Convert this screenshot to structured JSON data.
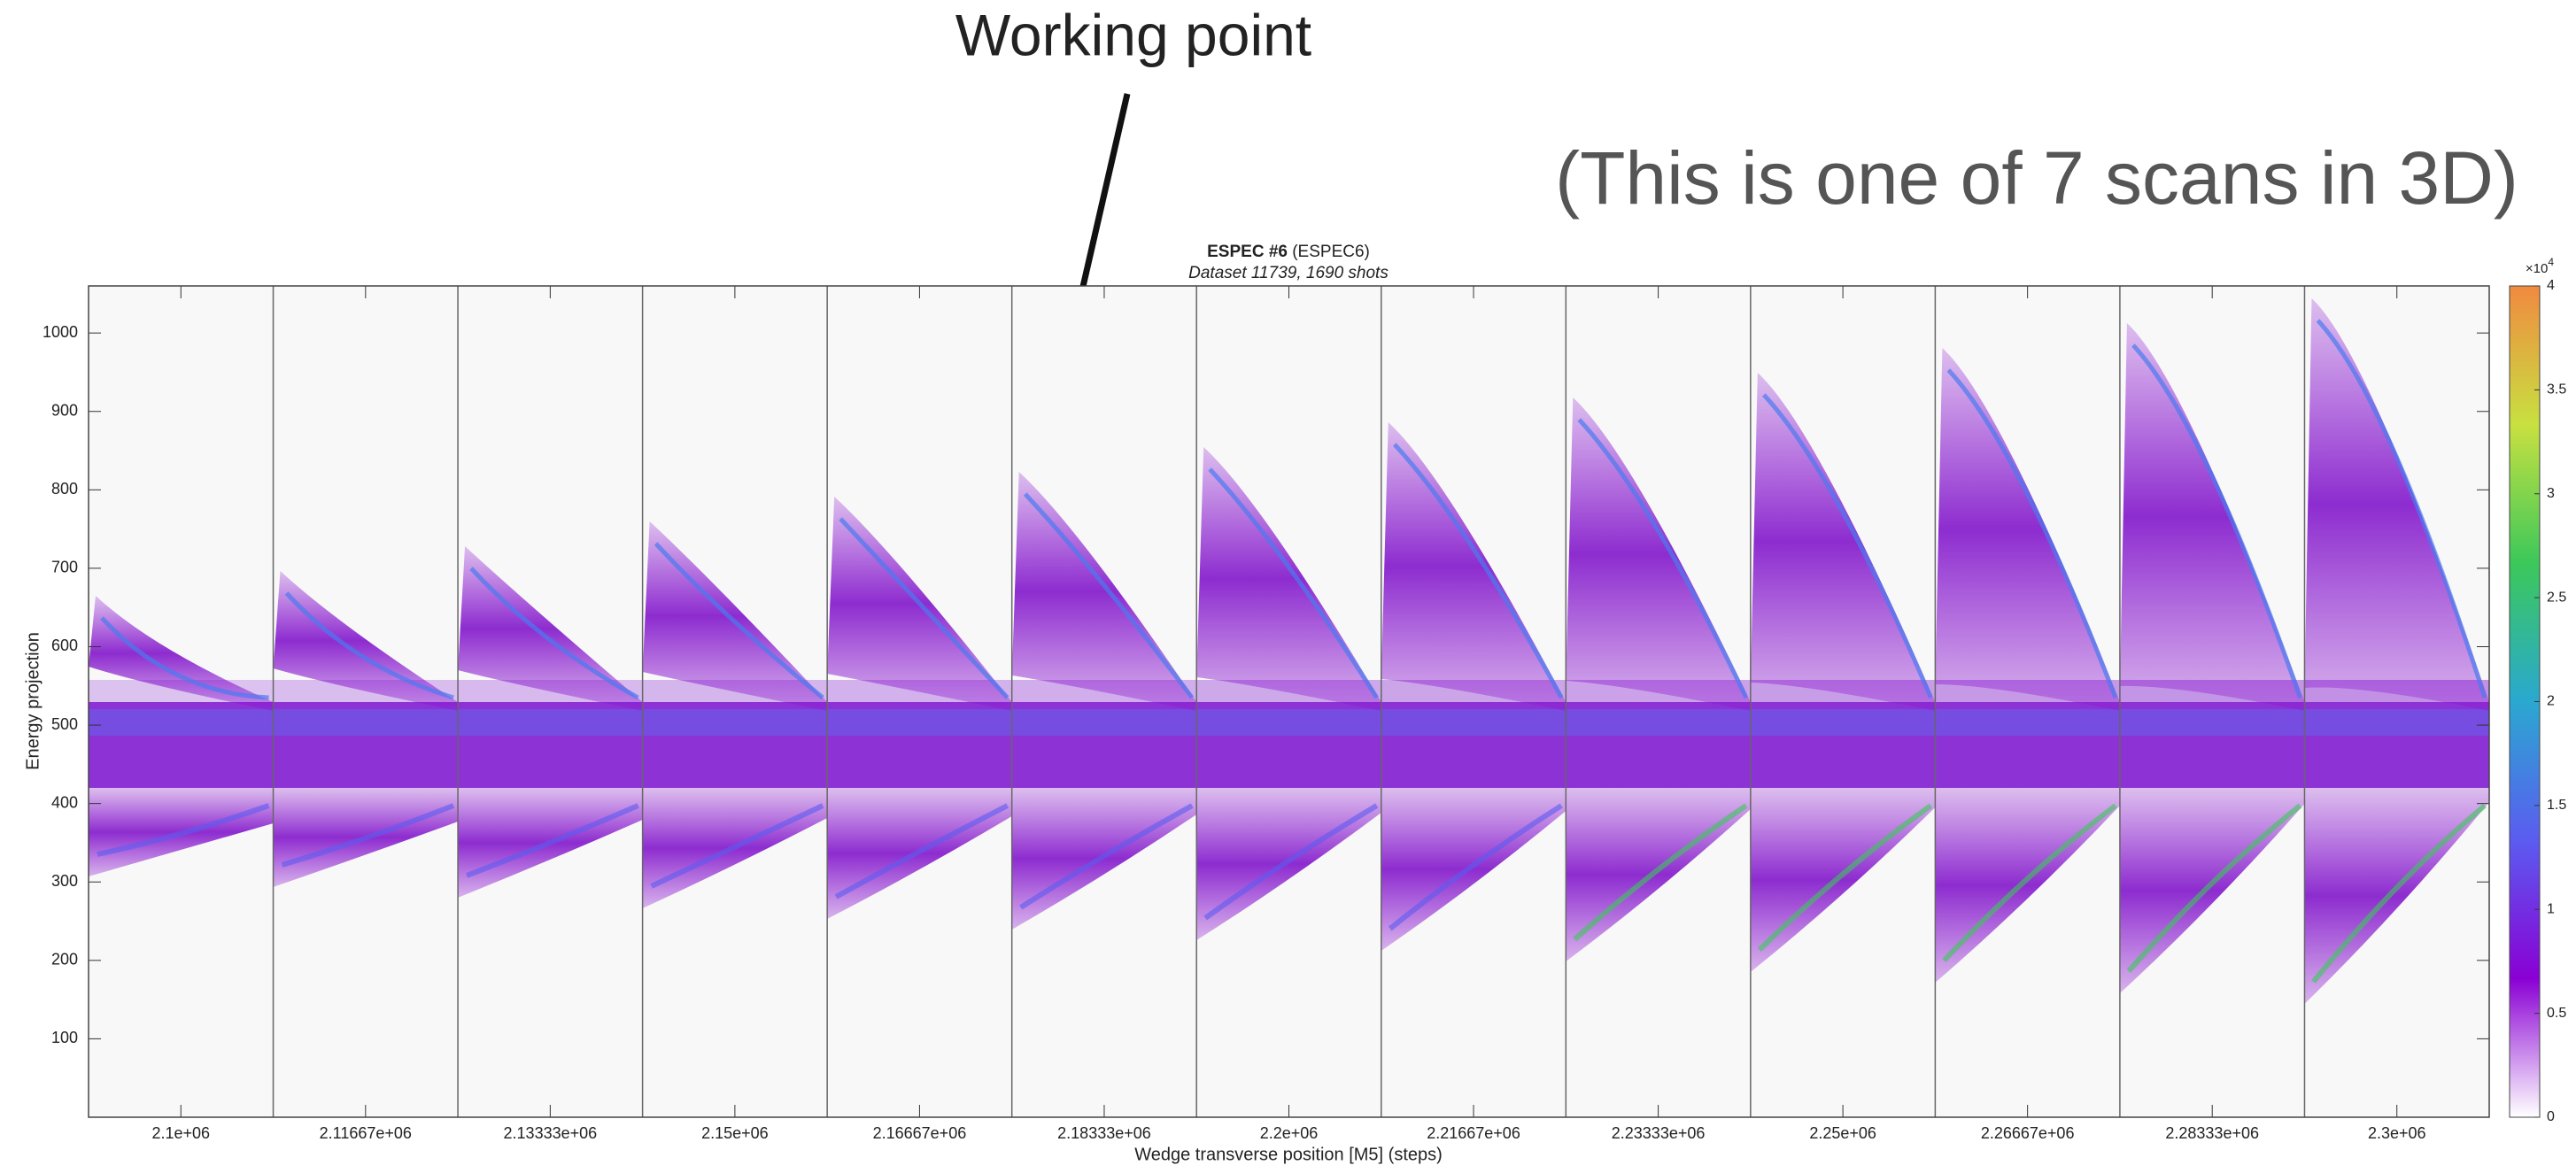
{
  "annotation": "Working point",
  "overlay_text": "(This is one of 7 scans in 3D)",
  "chart_data": {
    "type": "heatmap",
    "title": "ESPEC #6",
    "title_suffix": "(ESPEC6)",
    "subtitle": "Dataset 11739, 1690 shots",
    "x_label": "Wedge transverse position [M5] (steps)",
    "y_label": "Energy projection",
    "categories": [
      "2.1e+06",
      "2.11667e+06",
      "2.13333e+06",
      "2.15e+06",
      "2.16667e+06",
      "2.18333e+06",
      "2.2e+06",
      "2.21667e+06",
      "2.23333e+06",
      "2.25e+06",
      "2.26667e+06",
      "2.28333e+06",
      "2.3e+06"
    ],
    "ylim": [
      0,
      1060
    ],
    "yticks": [
      100,
      200,
      300,
      400,
      500,
      600,
      700,
      800,
      900,
      1000
    ],
    "colorbar": {
      "lim": [
        0,
        4
      ],
      "ticks": [
        0,
        0.5,
        1,
        1.5,
        2,
        2.5,
        3,
        3.5,
        4
      ],
      "multiplier": "×10",
      "exponent": "4",
      "colors": [
        "#ffffff",
        "#8a00d4",
        "#5b5cf0",
        "#2aa8d0",
        "#3cc85a",
        "#c8e040",
        "#f08a40"
      ]
    }
  }
}
